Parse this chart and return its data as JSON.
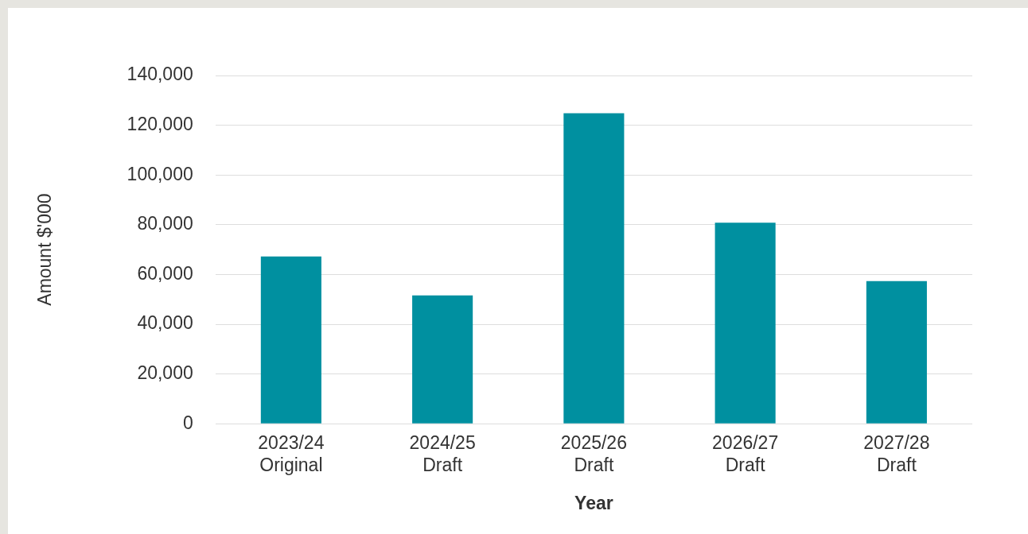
{
  "chart_data": {
    "type": "bar",
    "xlabel": "Year",
    "ylabel": "Amount $'000",
    "categories": [
      "2023/24\nOriginal",
      "2024/25\nDraft",
      "2025/26\nDraft",
      "2026/27\nDraft",
      "2027/28\nDraft"
    ],
    "values": [
      67200,
      51600,
      124800,
      80800,
      57300
    ],
    "color": "#0090a0",
    "ylim": [
      0,
      140000
    ],
    "yticks": [
      {
        "value": 0,
        "label": "0"
      },
      {
        "value": 20000,
        "label": "20,000"
      },
      {
        "value": 40000,
        "label": "40,000"
      },
      {
        "value": 60000,
        "label": "60,000"
      },
      {
        "value": 80000,
        "label": "80,000"
      },
      {
        "value": 100000,
        "label": "100,000"
      },
      {
        "value": 120000,
        "label": "120,000"
      },
      {
        "value": 140000,
        "label": "140,000"
      }
    ],
    "grid": "y",
    "legend": false
  }
}
